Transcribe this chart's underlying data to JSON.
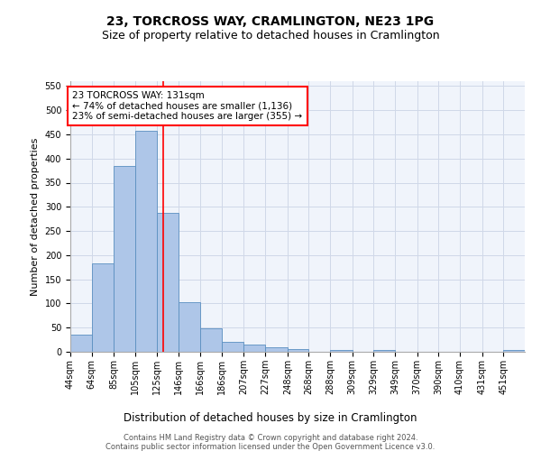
{
  "title1": "23, TORCROSS WAY, CRAMLINGTON, NE23 1PG",
  "title2": "Size of property relative to detached houses in Cramlington",
  "xlabel": "Distribution of detached houses by size in Cramlington",
  "ylabel": "Number of detached properties",
  "footer1": "Contains HM Land Registry data © Crown copyright and database right 2024.",
  "footer2": "Contains public sector information licensed under the Open Government Licence v3.0.",
  "annotation_title": "23 TORCROSS WAY: 131sqm",
  "annotation_line2": "← 74% of detached houses are smaller (1,136)",
  "annotation_line3": "23% of semi-detached houses are larger (355) →",
  "bar_color": "#aec6e8",
  "bar_edge_color": "#5a8fc0",
  "redline_x": 131,
  "categories": [
    "44sqm",
    "64sqm",
    "85sqm",
    "105sqm",
    "125sqm",
    "146sqm",
    "166sqm",
    "186sqm",
    "207sqm",
    "227sqm",
    "248sqm",
    "268sqm",
    "288sqm",
    "309sqm",
    "329sqm",
    "349sqm",
    "370sqm",
    "390sqm",
    "410sqm",
    "431sqm",
    "451sqm"
  ],
  "bin_edges": [
    44,
    64,
    85,
    105,
    125,
    146,
    166,
    186,
    207,
    227,
    248,
    268,
    288,
    309,
    329,
    349,
    370,
    390,
    410,
    431,
    451,
    471
  ],
  "values": [
    35,
    183,
    384,
    457,
    287,
    103,
    48,
    20,
    15,
    10,
    5,
    0,
    3,
    0,
    3,
    0,
    0,
    0,
    0,
    0,
    3
  ],
  "ylim": [
    0,
    560
  ],
  "yticks": [
    0,
    50,
    100,
    150,
    200,
    250,
    300,
    350,
    400,
    450,
    500,
    550
  ],
  "grid_color": "#d0d8e8",
  "background_color": "#f0f4fb",
  "title1_fontsize": 10,
  "title2_fontsize": 9,
  "ylabel_fontsize": 8,
  "xlabel_fontsize": 8.5,
  "tick_fontsize": 7,
  "footer_fontsize": 6,
  "annot_fontsize": 7.5
}
